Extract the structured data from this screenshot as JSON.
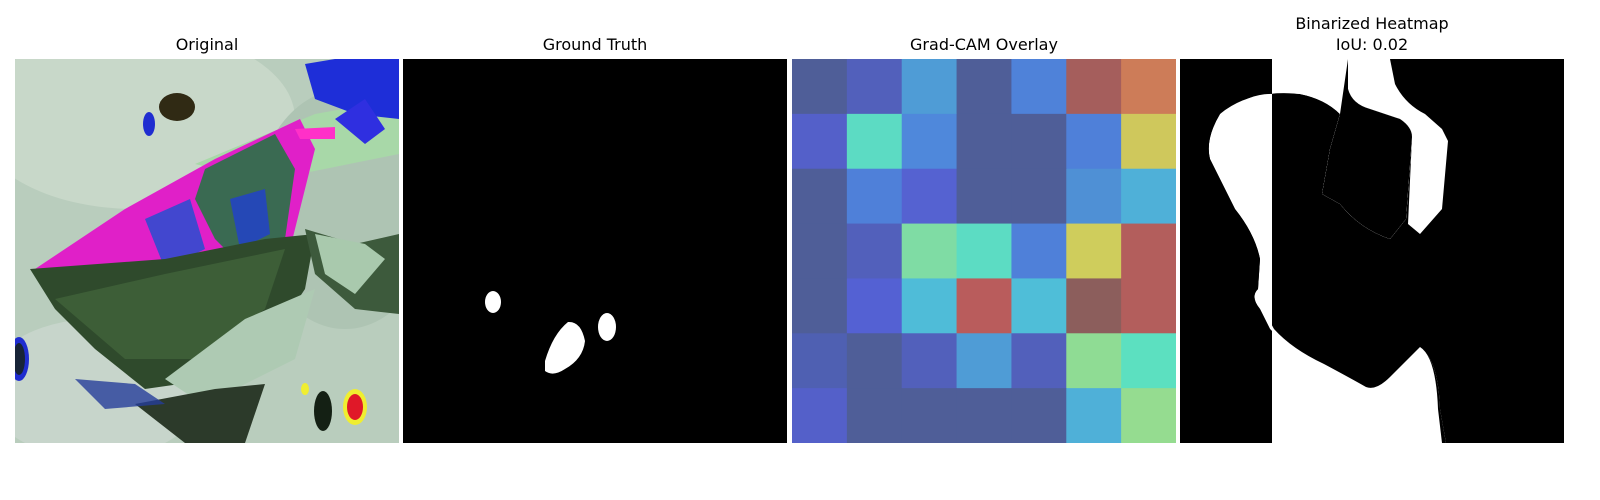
{
  "panels": [
    {
      "title": "Original"
    },
    {
      "title": "Ground Truth"
    },
    {
      "title": "Grad-CAM Overlay"
    },
    {
      "title": "Binarized Heatmap",
      "subtitle": "IoU: 0.02"
    }
  ],
  "gradcam": {
    "colors": [
      [
        "#4f5e98",
        "#5260bb",
        "#4f9cd6",
        "#4f5e98",
        "#4f82d9",
        "#a55e5c",
        "#cd7c58"
      ],
      [
        "#5460c9",
        "#5cdbc3",
        "#4f88db",
        "#4f5e98",
        "#4f5e98",
        "#4f80d9",
        "#cfc85c"
      ],
      [
        "#4f5e98",
        "#4f80d9",
        "#5562d1",
        "#4f5e98",
        "#4f5e98",
        "#4f90d5",
        "#4fb0d8"
      ],
      [
        "#4f5e98",
        "#5260bb",
        "#7fdca4",
        "#5cdcc3",
        "#4f80d9",
        "#cfcd5c",
        "#b35e5c"
      ],
      [
        "#4f5e98",
        "#5461d3",
        "#4fbcd8",
        "#b95c5c",
        "#4fbed8",
        "#8c5e5c",
        "#b35e5c"
      ],
      [
        "#4f60b2",
        "#4f5e98",
        "#5260bb",
        "#4f9cd6",
        "#5260bb",
        "#8fdc94",
        "#5ce0c0"
      ],
      [
        "#5460c9",
        "#4f5e98",
        "#4f5e98",
        "#4f5e98",
        "#4f5e98",
        "#4fb0d8",
        "#95dc90"
      ]
    ]
  }
}
